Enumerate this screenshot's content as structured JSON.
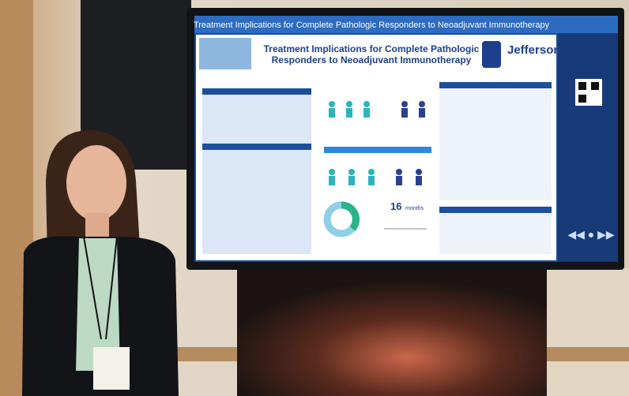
{
  "screen": {
    "banner": "Treatment Implications for Complete Pathologic Responders to Neoadjuvant Immunotherapy",
    "poster": {
      "title_lines": [
        "Treatment Implications for Complete Pathologic",
        "Responders to Neoadjuvant Immunotherapy"
      ],
      "logo": "Jefferson",
      "stat_value": "16",
      "stat_unit": "months"
    }
  }
}
